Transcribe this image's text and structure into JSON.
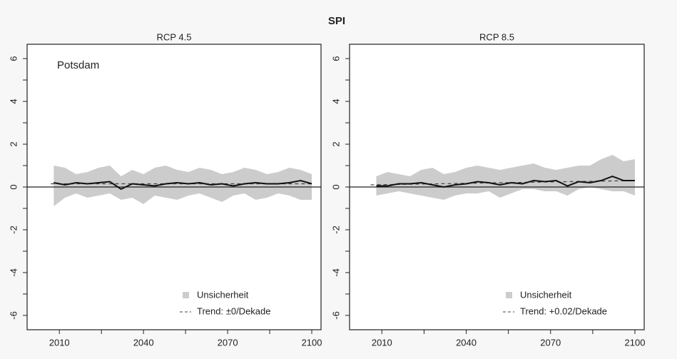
{
  "title": "SPI",
  "chart_data": [
    {
      "type": "line",
      "title": "RCP 4.5",
      "annotation": "Potsdam",
      "xlim": [
        1998.5,
        2103.3
      ],
      "xticks": [
        2010,
        2040,
        2070,
        2100
      ],
      "xminorticks": [
        2025,
        2055,
        2085
      ],
      "ylim": [
        -6.67,
        6.67
      ],
      "yticks": [
        -6,
        -4,
        -2,
        0,
        2,
        4,
        6
      ],
      "yminorticks": [
        -5,
        -3,
        -1,
        1,
        3,
        5
      ],
      "hline": 0,
      "x": [
        2008,
        2012,
        2016,
        2020,
        2024,
        2028,
        2032,
        2036,
        2040,
        2044,
        2048,
        2052,
        2056,
        2060,
        2064,
        2068,
        2072,
        2076,
        2080,
        2084,
        2088,
        2092,
        2096,
        2100
      ],
      "band": {
        "name": "Unsicherheit",
        "color": "#cccccc",
        "lower": [
          -0.9,
          -0.5,
          -0.3,
          -0.5,
          -0.4,
          -0.3,
          -0.6,
          -0.5,
          -0.8,
          -0.4,
          -0.5,
          -0.6,
          -0.4,
          -0.3,
          -0.5,
          -0.7,
          -0.4,
          -0.3,
          -0.6,
          -0.5,
          -0.3,
          -0.4,
          -0.6,
          -0.6
        ],
        "upper": [
          1.0,
          0.9,
          0.6,
          0.7,
          0.9,
          1.0,
          0.5,
          0.8,
          0.6,
          0.9,
          1.0,
          0.8,
          0.7,
          0.9,
          0.8,
          0.6,
          0.7,
          0.9,
          0.8,
          0.6,
          0.7,
          0.9,
          0.8,
          0.6
        ]
      },
      "line": {
        "color": "#111111",
        "values": [
          0.2,
          0.1,
          0.2,
          0.15,
          0.2,
          0.25,
          -0.1,
          0.15,
          0.1,
          0.05,
          0.15,
          0.2,
          0.15,
          0.2,
          0.1,
          0.15,
          0.05,
          0.15,
          0.2,
          0.15,
          0.15,
          0.2,
          0.3,
          0.15
        ]
      },
      "trend": {
        "name": "Trend: ±0/Dekade",
        "color": "#444444",
        "x": [
          2007,
          2100
        ],
        "values": [
          0.15,
          0.15
        ]
      }
    },
    {
      "type": "line",
      "title": "RCP 8.5",
      "xlim": [
        1998.5,
        2103.3
      ],
      "xticks": [
        2010,
        2040,
        2070,
        2100
      ],
      "xminorticks": [
        2025,
        2055,
        2085
      ],
      "ylim": [
        -6.67,
        6.67
      ],
      "yticks": [
        -6,
        -4,
        -2,
        0,
        2,
        4,
        6
      ],
      "yminorticks": [
        -5,
        -3,
        -1,
        1,
        3,
        5
      ],
      "hline": 0,
      "x": [
        2008,
        2012,
        2016,
        2020,
        2024,
        2028,
        2032,
        2036,
        2040,
        2044,
        2048,
        2052,
        2056,
        2060,
        2064,
        2068,
        2072,
        2076,
        2080,
        2084,
        2088,
        2092,
        2096,
        2100
      ],
      "band": {
        "name": "Unsicherheit",
        "color": "#cccccc",
        "lower": [
          -0.4,
          -0.3,
          -0.2,
          -0.3,
          -0.4,
          -0.5,
          -0.6,
          -0.4,
          -0.3,
          -0.3,
          -0.2,
          -0.5,
          -0.3,
          -0.1,
          -0.1,
          -0.2,
          -0.2,
          -0.4,
          -0.1,
          0,
          -0.1,
          -0.2,
          -0.2,
          -0.4
        ],
        "upper": [
          0.5,
          0.7,
          0.6,
          0.5,
          0.8,
          0.9,
          0.6,
          0.7,
          0.9,
          1.0,
          0.9,
          0.8,
          0.9,
          1.0,
          1.1,
          0.9,
          0.8,
          0.9,
          1.0,
          1.0,
          1.3,
          1.5,
          1.2,
          1.3
        ]
      },
      "line": {
        "color": "#111111",
        "values": [
          0.05,
          0.05,
          0.15,
          0.15,
          0.2,
          0.1,
          0.0,
          0.1,
          0.15,
          0.25,
          0.2,
          0.1,
          0.2,
          0.15,
          0.3,
          0.25,
          0.3,
          0.05,
          0.25,
          0.2,
          0.3,
          0.5,
          0.3,
          0.3
        ]
      },
      "trend": {
        "name": "Trend: +0.02/Dekade",
        "color": "#444444",
        "x": [
          2006,
          2100
        ],
        "values": [
          0.1,
          0.3
        ]
      }
    }
  ]
}
